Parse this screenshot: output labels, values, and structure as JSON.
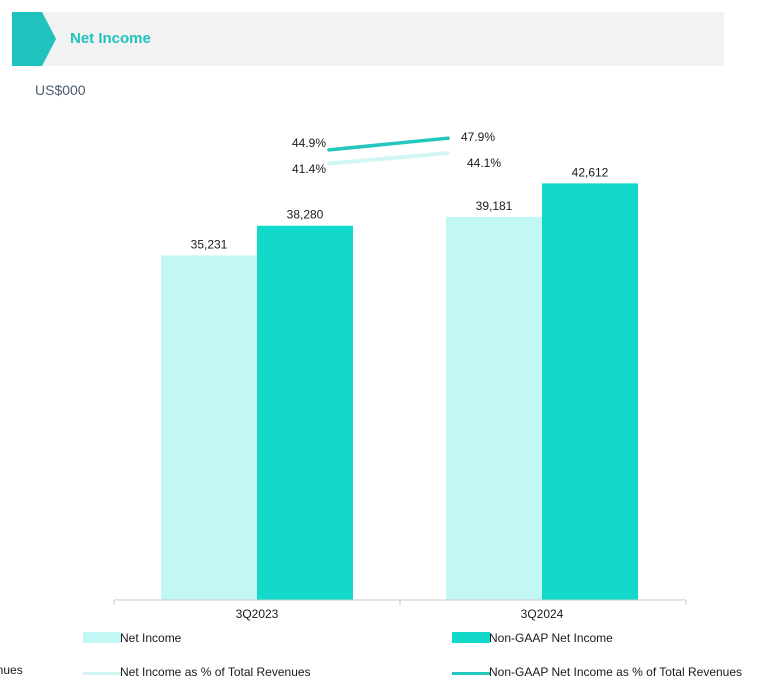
{
  "header": {
    "title": "Net Income"
  },
  "unit": "US$000",
  "colors": {
    "net_income": "#c2f7f5",
    "non_gaap": "#12d9c9",
    "accent": "#1fc2bd",
    "line_light": "#d3f6f5",
    "line_dark": "#23c7bd"
  },
  "chart_data": {
    "type": "bar",
    "categories": [
      "3Q2023",
      "3Q2024"
    ],
    "series": [
      {
        "name": "Net Income",
        "values": [
          35231,
          39181
        ],
        "labels": [
          "35,231",
          "39,181"
        ]
      },
      {
        "name": "Non-GAAP Net Income",
        "values": [
          38280,
          42612
        ],
        "labels": [
          "38,280",
          "42,612"
        ]
      }
    ],
    "line_series": [
      {
        "name": "Net Income as % of Total Revenues",
        "values": [
          41.4,
          44.1
        ],
        "labels": [
          "41.4%",
          "44.1%"
        ]
      },
      {
        "name": "Non-GAAP Net Income as % of Total Revenues",
        "values": [
          44.9,
          47.9
        ],
        "labels": [
          "44.9%",
          "47.9%"
        ]
      }
    ],
    "ylim": [
      0,
      45000
    ],
    "grid": false,
    "legend_position": "bottom"
  },
  "legend": {
    "net_income": "Net Income",
    "non_gaap": "Non-GAAP Net Income",
    "net_income_pct": "Net Income as % of Total Revenues",
    "non_gaap_pct": "Non-GAAP Net Income as % of Total Revenues",
    "cutoff_text": "enues"
  }
}
